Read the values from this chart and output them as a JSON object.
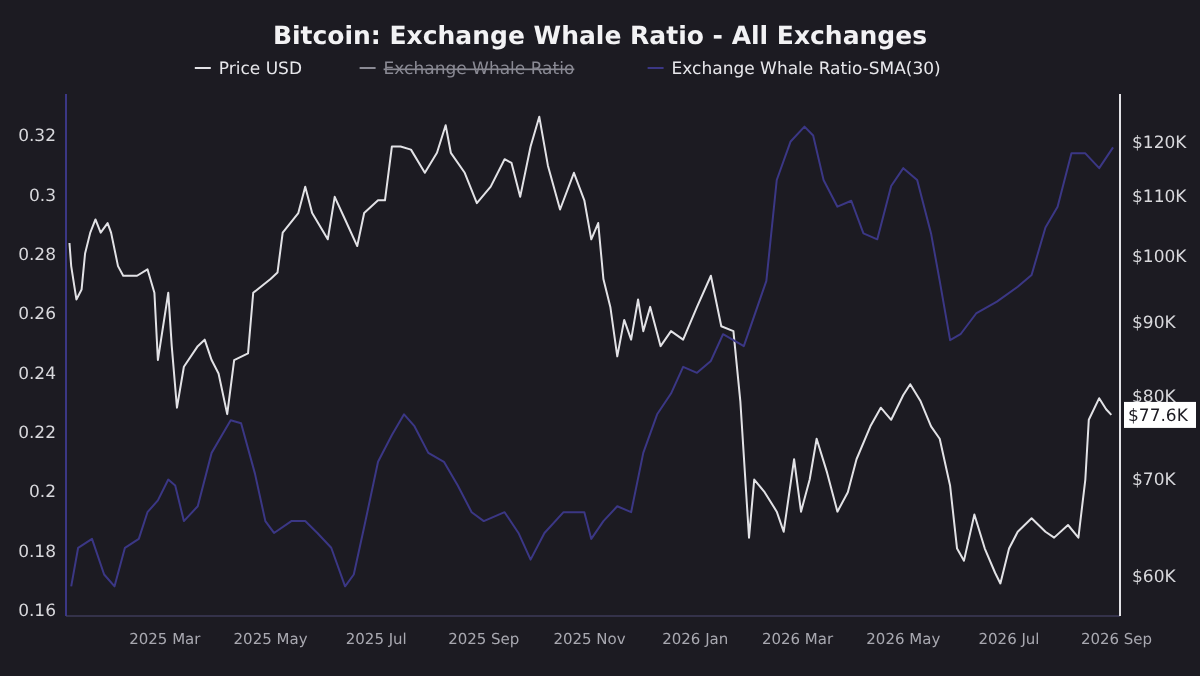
{
  "chart_data": {
    "type": "line",
    "title": "Bitcoin: Exchange Whale Ratio - All Exchanges",
    "legend": "top",
    "grid": false,
    "xlim": [
      "2025-01-03",
      "2026-09-03"
    ],
    "xticks": [
      {
        "value": "2025-03-01",
        "label": "2025 Mar"
      },
      {
        "value": "2025-05-01",
        "label": "2025 May"
      },
      {
        "value": "2025-07-01",
        "label": "2025 Jul"
      },
      {
        "value": "2025-09-01",
        "label": "2025 Sep"
      },
      {
        "value": "2025-11-01",
        "label": "2025 Nov"
      },
      {
        "value": "2026-01-01",
        "label": "2026 Jan"
      },
      {
        "value": "2026-03-01",
        "label": "2026 Mar"
      },
      {
        "value": "2026-05-01",
        "label": "2026 May"
      },
      {
        "value": "2026-07-01",
        "label": "2026 Jul"
      },
      {
        "value": "2026-09-01",
        "label": "2026 Sep"
      }
    ],
    "ylim": [
      0.158,
      0.334
    ],
    "yticks": [
      0.16,
      0.18,
      0.2,
      0.22,
      0.24,
      0.26,
      0.28,
      0.3,
      0.32
    ],
    "log": "y2",
    "y2lim": [
      56300,
      129500
    ],
    "y2ticks": [
      {
        "value": 60000,
        "label": "$60K"
      },
      {
        "value": 70000,
        "label": "$70K"
      },
      {
        "value": 80000,
        "label": "$80K"
      },
      {
        "value": 90000,
        "label": "$90K"
      },
      {
        "value": 100000,
        "label": "$100K"
      },
      {
        "value": 110000,
        "label": "$110K"
      },
      {
        "value": 120000,
        "label": "$120K"
      }
    ],
    "annotations": [
      "$77.6K"
    ],
    "series": [
      {
        "name": "Price USD",
        "axis": "y2",
        "color": "#e2e2e6",
        "x": [
          "2025-01-05",
          "2025-01-06",
          "2025-01-09",
          "2025-01-12",
          "2025-01-14",
          "2025-01-17",
          "2025-01-20",
          "2025-01-23",
          "2025-01-27",
          "2025-01-29",
          "2025-02-02",
          "2025-02-05",
          "2025-02-13",
          "2025-02-19",
          "2025-02-23",
          "2025-02-25",
          "2025-03-03",
          "2025-03-05",
          "2025-03-08",
          "2025-03-12",
          "2025-03-20",
          "2025-03-24",
          "2025-03-28",
          "2025-04-01",
          "2025-04-06",
          "2025-04-10",
          "2025-04-18",
          "2025-04-21",
          "2025-05-01",
          "2025-05-05",
          "2025-05-08",
          "2025-05-17",
          "2025-05-21",
          "2025-05-25",
          "2025-06-03",
          "2025-06-07",
          "2025-06-13",
          "2025-06-20",
          "2025-06-24",
          "2025-07-02",
          "2025-07-06",
          "2025-07-10",
          "2025-07-15",
          "2025-07-21",
          "2025-07-29",
          "2025-08-05",
          "2025-08-10",
          "2025-08-13",
          "2025-08-21",
          "2025-08-28",
          "2025-09-05",
          "2025-09-13",
          "2025-09-17",
          "2025-09-22",
          "2025-09-28",
          "2025-10-03",
          "2025-10-08",
          "2025-10-15",
          "2025-10-23",
          "2025-10-29",
          "2025-11-02",
          "2025-11-06",
          "2025-11-09",
          "2025-11-13",
          "2025-11-17",
          "2025-11-21",
          "2025-11-25",
          "2025-11-29",
          "2025-12-02",
          "2025-12-06",
          "2025-12-12",
          "2025-12-18",
          "2025-12-25",
          "2026-01-02",
          "2026-01-10",
          "2026-01-16",
          "2026-01-23",
          "2026-01-27",
          "2026-02-01",
          "2026-02-04",
          "2026-02-10",
          "2026-02-17",
          "2026-02-21",
          "2026-02-27",
          "2026-03-03",
          "2026-03-08",
          "2026-03-12",
          "2026-03-18",
          "2026-03-24",
          "2026-03-30",
          "2026-04-04",
          "2026-04-12",
          "2026-04-18",
          "2026-04-24",
          "2026-05-01",
          "2026-05-05",
          "2026-05-11",
          "2026-05-17",
          "2026-05-22",
          "2026-05-28",
          "2026-06-01",
          "2026-06-05",
          "2026-06-11",
          "2026-06-17",
          "2026-06-23",
          "2026-06-26",
          "2026-07-01",
          "2026-07-06",
          "2026-07-14",
          "2026-07-22",
          "2026-07-27",
          "2026-08-04",
          "2026-08-10",
          "2026-08-14",
          "2026-08-16",
          "2026-08-22",
          "2026-08-26",
          "2026-08-29"
        ],
        "values": [
          102100,
          98400,
          93300,
          94800,
          100400,
          103800,
          106000,
          103800,
          105400,
          103800,
          98400,
          96900,
          96900,
          97900,
          94300,
          84700,
          94300,
          86600,
          78500,
          83800,
          86600,
          87500,
          84700,
          82900,
          77700,
          84700,
          85600,
          94300,
          96400,
          97400,
          103800,
          107100,
          111700,
          107100,
          102700,
          109900,
          106000,
          101600,
          107100,
          109300,
          109300,
          119100,
          119100,
          118500,
          114200,
          117900,
          123200,
          117900,
          114200,
          108800,
          111700,
          116700,
          116000,
          109900,
          119100,
          124900,
          115500,
          107700,
          114200,
          109300,
          102700,
          105400,
          96400,
          92200,
          85200,
          90300,
          87500,
          93300,
          88700,
          92200,
          86600,
          88700,
          87500,
          92200,
          96900,
          89400,
          88700,
          79300,
          63800,
          70000,
          68600,
          66500,
          64400,
          72300,
          66500,
          70000,
          74700,
          70800,
          66500,
          68600,
          72300,
          76200,
          78500,
          77000,
          80100,
          81500,
          79300,
          76200,
          74700,
          69300,
          62700,
          61500,
          66200,
          62700,
          60300,
          59300,
          62700,
          64400,
          65800,
          64400,
          63800,
          65100,
          63800,
          70000,
          77000,
          79700,
          78300,
          77600
        ]
      },
      {
        "name": "Exchange Whale Ratio",
        "color": "#8a8a94"
      },
      {
        "name": "Exchange Whale Ratio-SMA(30)",
        "color": "#3b3785",
        "x": [
          "2025-01-06",
          "2025-01-10",
          "2025-01-18",
          "2025-01-25",
          "2025-01-31",
          "2025-02-06",
          "2025-02-14",
          "2025-02-19",
          "2025-02-25",
          "2025-03-03",
          "2025-03-07",
          "2025-03-12",
          "2025-03-20",
          "2025-03-28",
          "2025-04-03",
          "2025-04-08",
          "2025-04-14",
          "2025-04-22",
          "2025-04-28",
          "2025-05-03",
          "2025-05-13",
          "2025-05-21",
          "2025-05-28",
          "2025-06-05",
          "2025-06-13",
          "2025-06-18",
          "2025-06-24",
          "2025-07-02",
          "2025-07-10",
          "2025-07-17",
          "2025-07-23",
          "2025-07-31",
          "2025-08-09",
          "2025-08-17",
          "2025-08-25",
          "2025-09-01",
          "2025-09-13",
          "2025-09-21",
          "2025-09-28",
          "2025-10-06",
          "2025-10-17",
          "2025-10-29",
          "2025-11-02",
          "2025-11-09",
          "2025-11-17",
          "2025-11-25",
          "2025-12-02",
          "2025-12-10",
          "2025-12-18",
          "2025-12-25",
          "2026-01-02",
          "2026-01-10",
          "2026-01-17",
          "2026-01-29",
          "2026-02-11",
          "2026-02-17",
          "2026-02-25",
          "2026-03-05",
          "2026-03-10",
          "2026-03-16",
          "2026-03-24",
          "2026-04-01",
          "2026-04-08",
          "2026-04-16",
          "2026-04-24",
          "2026-05-01",
          "2026-05-09",
          "2026-05-17",
          "2026-05-22",
          "2026-05-28",
          "2026-06-03",
          "2026-06-12",
          "2026-06-24",
          "2026-07-06",
          "2026-07-14",
          "2026-07-22",
          "2026-07-29",
          "2026-08-06",
          "2026-08-14",
          "2026-08-22",
          "2026-08-30"
        ],
        "values": [
          0.168,
          0.181,
          0.184,
          0.172,
          0.168,
          0.181,
          0.184,
          0.193,
          0.197,
          0.204,
          0.202,
          0.19,
          0.195,
          0.213,
          0.219,
          0.224,
          0.223,
          0.206,
          0.19,
          0.186,
          0.19,
          0.19,
          0.186,
          0.181,
          0.168,
          0.172,
          0.188,
          0.21,
          0.219,
          0.226,
          0.222,
          0.213,
          0.21,
          0.202,
          0.193,
          0.19,
          0.193,
          0.186,
          0.177,
          0.186,
          0.193,
          0.193,
          0.184,
          0.19,
          0.195,
          0.193,
          0.213,
          0.226,
          0.233,
          0.242,
          0.24,
          0.244,
          0.253,
          0.249,
          0.271,
          0.305,
          0.318,
          0.323,
          0.32,
          0.305,
          0.296,
          0.298,
          0.287,
          0.285,
          0.303,
          0.309,
          0.305,
          0.287,
          0.271,
          0.251,
          0.253,
          0.26,
          0.264,
          0.269,
          0.273,
          0.289,
          0.296,
          0.314,
          0.314,
          0.309,
          0.316
        ]
      }
    ]
  }
}
